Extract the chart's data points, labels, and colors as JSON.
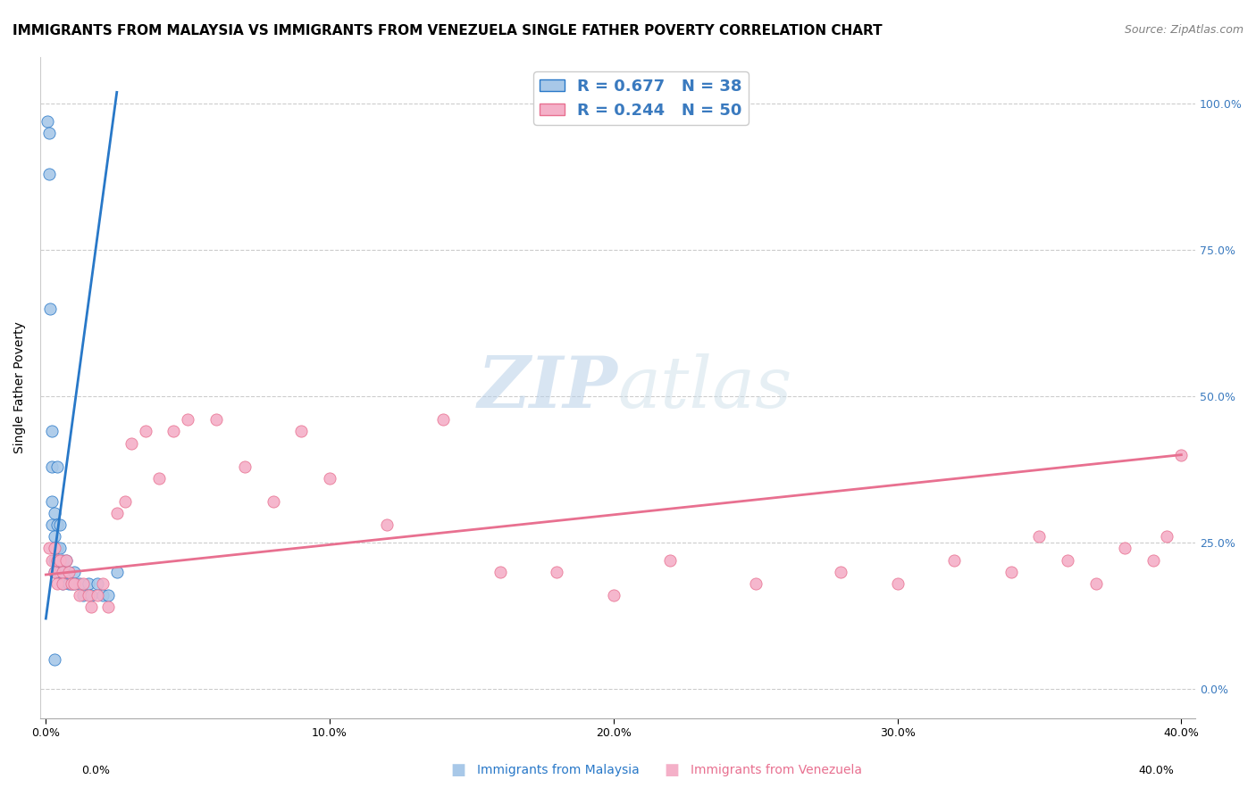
{
  "title": "IMMIGRANTS FROM MALAYSIA VS IMMIGRANTS FROM VENEZUELA SINGLE FATHER POVERTY CORRELATION CHART",
  "source": "Source: ZipAtlas.com",
  "xlim": [
    -0.002,
    0.405
  ],
  "ylim": [
    -0.05,
    1.08
  ],
  "ylabel_label": "Single Father Poverty",
  "malaysia_R": 0.677,
  "malaysia_N": 38,
  "venezuela_R": 0.244,
  "venezuela_N": 50,
  "malaysia_color": "#a8c8e8",
  "venezuela_color": "#f4b0c8",
  "malaysia_line_color": "#2878c8",
  "venezuela_line_color": "#e87090",
  "legend_text_color": "#3a7abf",
  "watermark_zip": "ZIP",
  "watermark_atlas": "atlas",
  "malaysia_x": [
    0.0005,
    0.001,
    0.001,
    0.0015,
    0.002,
    0.002,
    0.002,
    0.002,
    0.003,
    0.003,
    0.003,
    0.003,
    0.003,
    0.004,
    0.004,
    0.004,
    0.004,
    0.005,
    0.005,
    0.005,
    0.006,
    0.006,
    0.006,
    0.007,
    0.008,
    0.008,
    0.009,
    0.01,
    0.01,
    0.012,
    0.013,
    0.015,
    0.016,
    0.018,
    0.02,
    0.022,
    0.025,
    0.003
  ],
  "malaysia_y": [
    0.97,
    0.95,
    0.88,
    0.65,
    0.44,
    0.38,
    0.32,
    0.28,
    0.3,
    0.26,
    0.24,
    0.22,
    0.2,
    0.38,
    0.28,
    0.24,
    0.2,
    0.28,
    0.24,
    0.2,
    0.22,
    0.2,
    0.18,
    0.22,
    0.2,
    0.18,
    0.18,
    0.2,
    0.18,
    0.18,
    0.16,
    0.18,
    0.16,
    0.18,
    0.16,
    0.16,
    0.2,
    0.05
  ],
  "venezuela_x": [
    0.001,
    0.002,
    0.003,
    0.003,
    0.004,
    0.004,
    0.005,
    0.006,
    0.006,
    0.007,
    0.008,
    0.009,
    0.01,
    0.012,
    0.013,
    0.015,
    0.016,
    0.018,
    0.02,
    0.022,
    0.025,
    0.028,
    0.03,
    0.035,
    0.04,
    0.045,
    0.05,
    0.06,
    0.07,
    0.08,
    0.09,
    0.1,
    0.12,
    0.14,
    0.16,
    0.18,
    0.2,
    0.22,
    0.25,
    0.28,
    0.3,
    0.32,
    0.34,
    0.35,
    0.36,
    0.37,
    0.38,
    0.39,
    0.395,
    0.4
  ],
  "venezuela_y": [
    0.24,
    0.22,
    0.24,
    0.2,
    0.22,
    0.18,
    0.22,
    0.2,
    0.18,
    0.22,
    0.2,
    0.18,
    0.18,
    0.16,
    0.18,
    0.16,
    0.14,
    0.16,
    0.18,
    0.14,
    0.3,
    0.32,
    0.42,
    0.44,
    0.36,
    0.44,
    0.46,
    0.46,
    0.38,
    0.32,
    0.44,
    0.36,
    0.28,
    0.46,
    0.2,
    0.2,
    0.16,
    0.22,
    0.18,
    0.2,
    0.18,
    0.22,
    0.2,
    0.26,
    0.22,
    0.18,
    0.24,
    0.22,
    0.26,
    0.4
  ],
  "malaysia_line_x": [
    0.0,
    0.025
  ],
  "malaysia_line_y": [
    0.12,
    1.02
  ],
  "venezuela_line_x": [
    0.0,
    0.4
  ],
  "venezuela_line_y": [
    0.195,
    0.4
  ],
  "xticks": [
    0.0,
    0.1,
    0.2,
    0.3,
    0.4
  ],
  "yticks": [
    0.0,
    0.25,
    0.5,
    0.75,
    1.0
  ],
  "grid_color": "#cccccc",
  "background_color": "#ffffff",
  "title_fontsize": 11,
  "axis_fontsize": 10,
  "tick_fontsize": 9,
  "source_fontsize": 9,
  "marker_size": 90
}
